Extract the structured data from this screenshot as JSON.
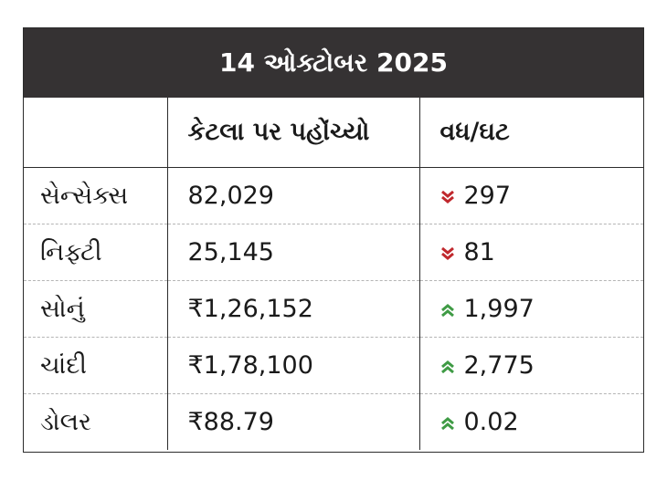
{
  "header": {
    "title": "14 ઓક્ટોબર 2025"
  },
  "table": {
    "columns": [
      "કેટલા પર પહોંચ્યો",
      "વધ/ઘટ"
    ],
    "rows": [
      {
        "name": "સેન્સેક્સ",
        "value": "82,029",
        "change": "297",
        "direction": "down"
      },
      {
        "name": "નિફ્ટી",
        "value": "25,145",
        "change": "81",
        "direction": "down"
      },
      {
        "name": "સોનું",
        "value": "₹1,26,152",
        "change": "1,997",
        "direction": "up"
      },
      {
        "name": "ચાંદી",
        "value": "₹1,78,100",
        "change": "2,775",
        "direction": "up"
      },
      {
        "name": "ડોલર",
        "value": "₹88.79",
        "change": "0.02",
        "direction": "up"
      }
    ]
  }
}
